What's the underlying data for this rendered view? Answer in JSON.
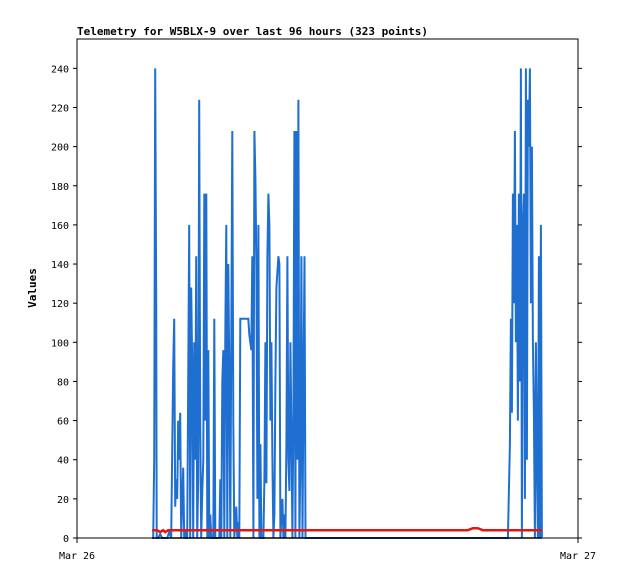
{
  "chart_data": {
    "type": "line",
    "title": "Telemetry for W5BLX-9 over last 96 hours (323 points)",
    "xlabel": "",
    "ylabel": "Values",
    "x_ticks": [
      "Mar 26",
      "Mar 27"
    ],
    "y_ticks": [
      0,
      20,
      40,
      60,
      80,
      100,
      120,
      140,
      160,
      180,
      200,
      220,
      240
    ],
    "ylim": [
      0,
      255
    ],
    "grid": false,
    "legend": "none",
    "series": [
      {
        "color": "#1f6fd1",
        "points": [
          [
            0.15,
            0
          ],
          [
            0.152,
            0
          ],
          [
            0.154,
            40
          ],
          [
            0.156,
            240
          ],
          [
            0.158,
            120
          ],
          [
            0.159,
            0
          ],
          [
            0.162,
            0
          ],
          [
            0.166,
            2
          ],
          [
            0.17,
            0
          ],
          [
            0.18,
            0
          ],
          [
            0.184,
            3
          ],
          [
            0.188,
            0
          ],
          [
            0.192,
            88
          ],
          [
            0.194,
            112
          ],
          [
            0.196,
            16
          ],
          [
            0.198,
            30
          ],
          [
            0.2,
            20
          ],
          [
            0.202,
            60
          ],
          [
            0.204,
            40
          ],
          [
            0.206,
            64
          ],
          [
            0.208,
            0
          ],
          [
            0.212,
            36
          ],
          [
            0.214,
            0
          ],
          [
            0.216,
            4
          ],
          [
            0.218,
            0
          ],
          [
            0.22,
            0
          ],
          [
            0.222,
            80
          ],
          [
            0.224,
            160
          ],
          [
            0.226,
            0
          ],
          [
            0.228,
            128
          ],
          [
            0.23,
            88
          ],
          [
            0.232,
            0
          ],
          [
            0.234,
            100
          ],
          [
            0.236,
            40
          ],
          [
            0.238,
            144
          ],
          [
            0.24,
            0
          ],
          [
            0.242,
            30
          ],
          [
            0.244,
            224
          ],
          [
            0.246,
            60
          ],
          [
            0.248,
            0
          ],
          [
            0.25,
            24
          ],
          [
            0.252,
            40
          ],
          [
            0.254,
            176
          ],
          [
            0.256,
            60
          ],
          [
            0.258,
            176
          ],
          [
            0.26,
            0
          ],
          [
            0.262,
            96
          ],
          [
            0.264,
            0
          ],
          [
            0.266,
            12
          ],
          [
            0.268,
            0
          ],
          [
            0.272,
            0
          ],
          [
            0.274,
            112
          ],
          [
            0.276,
            0
          ],
          [
            0.28,
            0
          ],
          [
            0.284,
            0
          ],
          [
            0.286,
            30
          ],
          [
            0.288,
            0
          ],
          [
            0.29,
            80
          ],
          [
            0.292,
            96
          ],
          [
            0.294,
            0
          ],
          [
            0.296,
            104
          ],
          [
            0.298,
            160
          ],
          [
            0.3,
            0
          ],
          [
            0.302,
            140
          ],
          [
            0.304,
            84
          ],
          [
            0.306,
            0
          ],
          [
            0.31,
            208
          ],
          [
            0.312,
            60
          ],
          [
            0.314,
            0
          ],
          [
            0.318,
            16
          ],
          [
            0.32,
            0
          ],
          [
            0.322,
            8
          ],
          [
            0.324,
            0
          ],
          [
            0.326,
            112
          ],
          [
            0.33,
            112
          ],
          [
            0.334,
            112
          ],
          [
            0.338,
            112
          ],
          [
            0.342,
            112
          ],
          [
            0.344,
            104
          ],
          [
            0.346,
            100
          ],
          [
            0.348,
            96
          ],
          [
            0.35,
            144
          ],
          [
            0.352,
            0
          ],
          [
            0.354,
            208
          ],
          [
            0.356,
            184
          ],
          [
            0.358,
            140
          ],
          [
            0.36,
            20
          ],
          [
            0.362,
            160
          ],
          [
            0.364,
            0
          ],
          [
            0.366,
            48
          ],
          [
            0.368,
            0
          ],
          [
            0.372,
            0
          ],
          [
            0.374,
            30
          ],
          [
            0.376,
            100
          ],
          [
            0.378,
            28
          ],
          [
            0.38,
            144
          ],
          [
            0.382,
            176
          ],
          [
            0.384,
            160
          ],
          [
            0.386,
            60
          ],
          [
            0.388,
            100
          ],
          [
            0.39,
            40
          ],
          [
            0.392,
            0
          ],
          [
            0.394,
            12
          ],
          [
            0.396,
            80
          ],
          [
            0.398,
            128
          ],
          [
            0.4,
            136
          ],
          [
            0.402,
            144
          ],
          [
            0.404,
            140
          ],
          [
            0.406,
            0
          ],
          [
            0.408,
            12
          ],
          [
            0.41,
            20
          ],
          [
            0.412,
            0
          ],
          [
            0.414,
            12
          ],
          [
            0.416,
            0
          ],
          [
            0.418,
            48
          ],
          [
            0.42,
            144
          ],
          [
            0.422,
            40
          ],
          [
            0.424,
            24
          ],
          [
            0.426,
            100
          ],
          [
            0.428,
            56
          ],
          [
            0.43,
            0
          ],
          [
            0.432,
            64
          ],
          [
            0.434,
            208
          ],
          [
            0.436,
            0
          ],
          [
            0.438,
            208
          ],
          [
            0.44,
            40
          ],
          [
            0.442,
            224
          ],
          [
            0.444,
            0
          ],
          [
            0.446,
            40
          ],
          [
            0.448,
            144
          ],
          [
            0.45,
            0
          ],
          [
            0.452,
            80
          ],
          [
            0.454,
            144
          ],
          [
            0.456,
            0
          ],
          [
            0.46,
            0
          ],
          [
            0.5,
            0
          ],
          [
            0.6,
            0
          ],
          [
            0.7,
            0
          ],
          [
            0.8,
            0
          ],
          [
            0.85,
            0
          ],
          [
            0.86,
            0
          ],
          [
            0.862,
            24
          ],
          [
            0.864,
            48
          ],
          [
            0.866,
            112
          ],
          [
            0.868,
            64
          ],
          [
            0.87,
            176
          ],
          [
            0.872,
            120
          ],
          [
            0.874,
            208
          ],
          [
            0.876,
            100
          ],
          [
            0.878,
            160
          ],
          [
            0.88,
            60
          ],
          [
            0.882,
            176
          ],
          [
            0.884,
            80
          ],
          [
            0.886,
            240
          ],
          [
            0.888,
            0
          ],
          [
            0.89,
            160
          ],
          [
            0.892,
            176
          ],
          [
            0.894,
            20
          ],
          [
            0.896,
            240
          ],
          [
            0.898,
            40
          ],
          [
            0.9,
            224
          ],
          [
            0.902,
            200
          ],
          [
            0.904,
            240
          ],
          [
            0.906,
            120
          ],
          [
            0.908,
            200
          ],
          [
            0.91,
            100
          ],
          [
            0.912,
            64
          ],
          [
            0.914,
            0
          ],
          [
            0.916,
            100
          ],
          [
            0.918,
            40
          ],
          [
            0.92,
            0
          ],
          [
            0.922,
            144
          ],
          [
            0.924,
            0
          ],
          [
            0.926,
            160
          ],
          [
            0.928,
            0
          ]
        ]
      },
      {
        "color": "#e8150f",
        "points": [
          [
            0.15,
            4
          ],
          [
            0.16,
            4
          ],
          [
            0.166,
            3
          ],
          [
            0.172,
            4
          ],
          [
            0.176,
            3
          ],
          [
            0.182,
            4
          ],
          [
            0.2,
            4
          ],
          [
            0.3,
            4
          ],
          [
            0.4,
            4
          ],
          [
            0.5,
            4
          ],
          [
            0.6,
            4
          ],
          [
            0.7,
            4
          ],
          [
            0.78,
            4
          ],
          [
            0.79,
            5
          ],
          [
            0.8,
            5
          ],
          [
            0.81,
            4
          ],
          [
            0.82,
            4
          ],
          [
            0.85,
            4
          ],
          [
            0.9,
            4
          ],
          [
            0.928,
            4
          ]
        ]
      },
      {
        "color": "#000000",
        "points": [
          [
            0.15,
            0
          ],
          [
            0.928,
            0
          ]
        ]
      }
    ]
  }
}
